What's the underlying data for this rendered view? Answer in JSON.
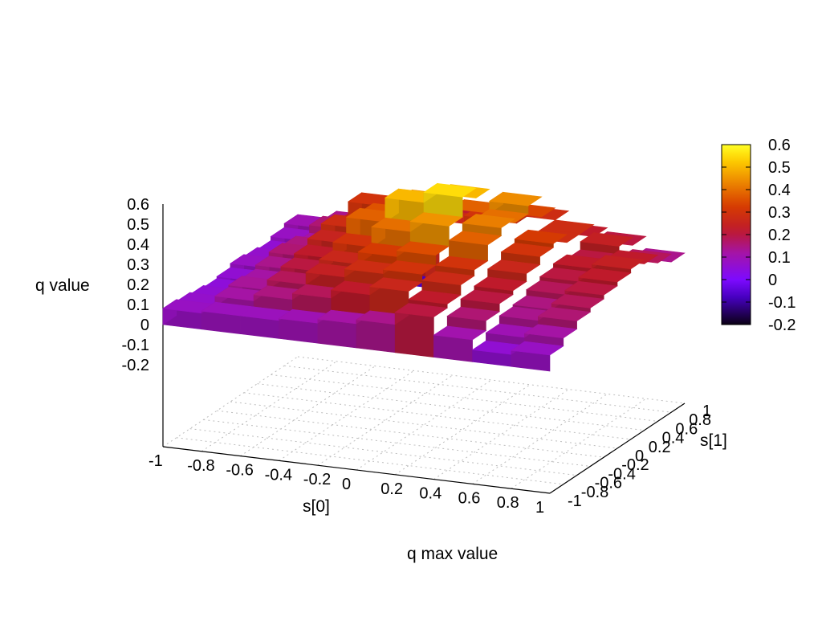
{
  "chart_data": {
    "type": "heatmap",
    "subtype": "3d-surface",
    "title": "q max value",
    "xlabel": "s[0]",
    "ylabel": "s[1]",
    "zlabel": "q value",
    "xlim": [
      -1,
      1
    ],
    "ylim": [
      -1,
      1
    ],
    "zlim": [
      -0.2,
      0.6
    ],
    "x_ticks": [
      "-1",
      "-0.8",
      "-0.6",
      "-0.4",
      "-0.2",
      "0",
      "0.2",
      "0.4",
      "0.6",
      "0.8",
      "1"
    ],
    "y_ticks": [
      "-1",
      "-0.8",
      "-0.6",
      "-0.4",
      "-0.2",
      "0",
      "0.2",
      "0.4",
      "0.6",
      "0.8",
      "1"
    ],
    "z_ticks": [
      "-0.2",
      "-0.1",
      "0",
      "0.1",
      "0.2",
      "0.3",
      "0.4",
      "0.5",
      "0.6"
    ],
    "colorbar_ticks": [
      "-0.2",
      "-0.1",
      "0",
      "0.1",
      "0.2",
      "0.3",
      "0.4",
      "0.5",
      "0.6"
    ],
    "colorbar_range": [
      -0.2,
      0.6
    ],
    "palette": "black-purple-red-orange-yellow",
    "grid": true,
    "x": [
      -1.0,
      -0.8,
      -0.6,
      -0.4,
      -0.2,
      0.0,
      0.2,
      0.4,
      0.6,
      0.8
    ],
    "y": [
      -1.0,
      -0.8,
      -0.6,
      -0.4,
      -0.2,
      0.0,
      0.2,
      0.4,
      0.6,
      0.8
    ],
    "z": [
      [
        0.08,
        0.09,
        0.09,
        0.1,
        0.12,
        0.14,
        0.2,
        0.11,
        0.06,
        0.08
      ],
      [
        0.07,
        0.12,
        0.15,
        0.18,
        0.22,
        0.26,
        0.22,
        0.16,
        0.1,
        0.12
      ],
      [
        0.06,
        0.13,
        0.18,
        0.24,
        0.28,
        0.3,
        0.27,
        0.2,
        0.14,
        0.16
      ],
      [
        0.05,
        0.12,
        0.2,
        0.26,
        0.32,
        0.35,
        0.3,
        0.22,
        0.15,
        0.18
      ],
      [
        0.06,
        0.14,
        0.22,
        0.3,
        0.4,
        0.45,
        0.38,
        0.26,
        0.18,
        0.2
      ],
      [
        0.08,
        0.16,
        0.25,
        0.38,
        0.5,
        0.55,
        0.42,
        0.3,
        0.2,
        0.22
      ],
      [
        0.07,
        0.15,
        0.28,
        0.36,
        0.45,
        0.5,
        0.4,
        0.32,
        0.22,
        0.24
      ],
      [
        0.06,
        0.12,
        0.24,
        0.3,
        0.35,
        0.38,
        0.44,
        0.28,
        0.2,
        0.22
      ],
      [
        0.08,
        0.16,
        0.3,
        -0.08,
        0.26,
        0.3,
        0.34,
        0.28,
        0.24,
        0.18
      ],
      [
        0.1,
        0.14,
        0.2,
        0.24,
        0.22,
        0.24,
        0.28,
        0.22,
        0.2,
        0.14
      ]
    ]
  }
}
